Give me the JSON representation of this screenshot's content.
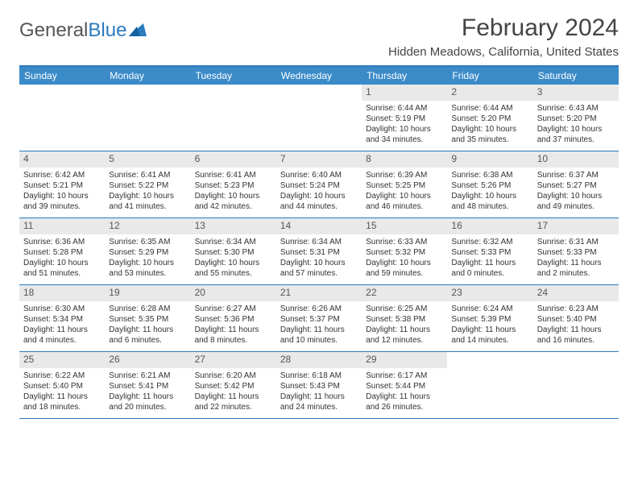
{
  "brand": {
    "part1": "General",
    "part2": "Blue"
  },
  "title": "February 2024",
  "location": "Hidden Meadows, California, United States",
  "colors": {
    "header_bg": "#3b8bc9",
    "header_text": "#ffffff",
    "border": "#2b7bbf",
    "daynum_bg": "#e9e9e9",
    "text": "#333333",
    "page_bg": "#ffffff"
  },
  "daynames": [
    "Sunday",
    "Monday",
    "Tuesday",
    "Wednesday",
    "Thursday",
    "Friday",
    "Saturday"
  ],
  "weeks": [
    [
      {
        "n": "",
        "sr": "",
        "ss": "",
        "dl": ""
      },
      {
        "n": "",
        "sr": "",
        "ss": "",
        "dl": ""
      },
      {
        "n": "",
        "sr": "",
        "ss": "",
        "dl": ""
      },
      {
        "n": "",
        "sr": "",
        "ss": "",
        "dl": ""
      },
      {
        "n": "1",
        "sr": "Sunrise: 6:44 AM",
        "ss": "Sunset: 5:19 PM",
        "dl": "Daylight: 10 hours and 34 minutes."
      },
      {
        "n": "2",
        "sr": "Sunrise: 6:44 AM",
        "ss": "Sunset: 5:20 PM",
        "dl": "Daylight: 10 hours and 35 minutes."
      },
      {
        "n": "3",
        "sr": "Sunrise: 6:43 AM",
        "ss": "Sunset: 5:20 PM",
        "dl": "Daylight: 10 hours and 37 minutes."
      }
    ],
    [
      {
        "n": "4",
        "sr": "Sunrise: 6:42 AM",
        "ss": "Sunset: 5:21 PM",
        "dl": "Daylight: 10 hours and 39 minutes."
      },
      {
        "n": "5",
        "sr": "Sunrise: 6:41 AM",
        "ss": "Sunset: 5:22 PM",
        "dl": "Daylight: 10 hours and 41 minutes."
      },
      {
        "n": "6",
        "sr": "Sunrise: 6:41 AM",
        "ss": "Sunset: 5:23 PM",
        "dl": "Daylight: 10 hours and 42 minutes."
      },
      {
        "n": "7",
        "sr": "Sunrise: 6:40 AM",
        "ss": "Sunset: 5:24 PM",
        "dl": "Daylight: 10 hours and 44 minutes."
      },
      {
        "n": "8",
        "sr": "Sunrise: 6:39 AM",
        "ss": "Sunset: 5:25 PM",
        "dl": "Daylight: 10 hours and 46 minutes."
      },
      {
        "n": "9",
        "sr": "Sunrise: 6:38 AM",
        "ss": "Sunset: 5:26 PM",
        "dl": "Daylight: 10 hours and 48 minutes."
      },
      {
        "n": "10",
        "sr": "Sunrise: 6:37 AM",
        "ss": "Sunset: 5:27 PM",
        "dl": "Daylight: 10 hours and 49 minutes."
      }
    ],
    [
      {
        "n": "11",
        "sr": "Sunrise: 6:36 AM",
        "ss": "Sunset: 5:28 PM",
        "dl": "Daylight: 10 hours and 51 minutes."
      },
      {
        "n": "12",
        "sr": "Sunrise: 6:35 AM",
        "ss": "Sunset: 5:29 PM",
        "dl": "Daylight: 10 hours and 53 minutes."
      },
      {
        "n": "13",
        "sr": "Sunrise: 6:34 AM",
        "ss": "Sunset: 5:30 PM",
        "dl": "Daylight: 10 hours and 55 minutes."
      },
      {
        "n": "14",
        "sr": "Sunrise: 6:34 AM",
        "ss": "Sunset: 5:31 PM",
        "dl": "Daylight: 10 hours and 57 minutes."
      },
      {
        "n": "15",
        "sr": "Sunrise: 6:33 AM",
        "ss": "Sunset: 5:32 PM",
        "dl": "Daylight: 10 hours and 59 minutes."
      },
      {
        "n": "16",
        "sr": "Sunrise: 6:32 AM",
        "ss": "Sunset: 5:33 PM",
        "dl": "Daylight: 11 hours and 0 minutes."
      },
      {
        "n": "17",
        "sr": "Sunrise: 6:31 AM",
        "ss": "Sunset: 5:33 PM",
        "dl": "Daylight: 11 hours and 2 minutes."
      }
    ],
    [
      {
        "n": "18",
        "sr": "Sunrise: 6:30 AM",
        "ss": "Sunset: 5:34 PM",
        "dl": "Daylight: 11 hours and 4 minutes."
      },
      {
        "n": "19",
        "sr": "Sunrise: 6:28 AM",
        "ss": "Sunset: 5:35 PM",
        "dl": "Daylight: 11 hours and 6 minutes."
      },
      {
        "n": "20",
        "sr": "Sunrise: 6:27 AM",
        "ss": "Sunset: 5:36 PM",
        "dl": "Daylight: 11 hours and 8 minutes."
      },
      {
        "n": "21",
        "sr": "Sunrise: 6:26 AM",
        "ss": "Sunset: 5:37 PM",
        "dl": "Daylight: 11 hours and 10 minutes."
      },
      {
        "n": "22",
        "sr": "Sunrise: 6:25 AM",
        "ss": "Sunset: 5:38 PM",
        "dl": "Daylight: 11 hours and 12 minutes."
      },
      {
        "n": "23",
        "sr": "Sunrise: 6:24 AM",
        "ss": "Sunset: 5:39 PM",
        "dl": "Daylight: 11 hours and 14 minutes."
      },
      {
        "n": "24",
        "sr": "Sunrise: 6:23 AM",
        "ss": "Sunset: 5:40 PM",
        "dl": "Daylight: 11 hours and 16 minutes."
      }
    ],
    [
      {
        "n": "25",
        "sr": "Sunrise: 6:22 AM",
        "ss": "Sunset: 5:40 PM",
        "dl": "Daylight: 11 hours and 18 minutes."
      },
      {
        "n": "26",
        "sr": "Sunrise: 6:21 AM",
        "ss": "Sunset: 5:41 PM",
        "dl": "Daylight: 11 hours and 20 minutes."
      },
      {
        "n": "27",
        "sr": "Sunrise: 6:20 AM",
        "ss": "Sunset: 5:42 PM",
        "dl": "Daylight: 11 hours and 22 minutes."
      },
      {
        "n": "28",
        "sr": "Sunrise: 6:18 AM",
        "ss": "Sunset: 5:43 PM",
        "dl": "Daylight: 11 hours and 24 minutes."
      },
      {
        "n": "29",
        "sr": "Sunrise: 6:17 AM",
        "ss": "Sunset: 5:44 PM",
        "dl": "Daylight: 11 hours and 26 minutes."
      },
      {
        "n": "",
        "sr": "",
        "ss": "",
        "dl": ""
      },
      {
        "n": "",
        "sr": "",
        "ss": "",
        "dl": ""
      }
    ]
  ]
}
